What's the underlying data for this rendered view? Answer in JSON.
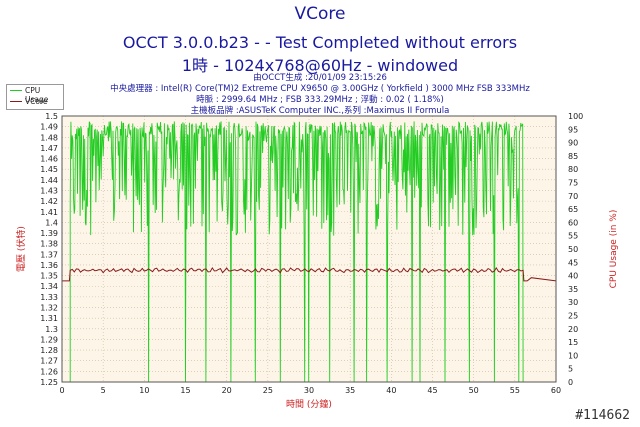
{
  "header": {
    "title": "VCore",
    "subtitle": "OCCT 3.0.0.b23 -  - Test Completed without errors",
    "subtitle2": "1時 - 1024x768@60Hz - windowed"
  },
  "info": {
    "line1": "由OCCT生成 :20/01/09 23:15:26",
    "line2": "中央處理器 : Intel(R) Core(TM)2 Extreme CPU X9650 @ 3.00GHz ( Yorkfield ) 3000 MHz FSB 333MHz",
    "line3": "時脈 : 2999.64 MHz ; FSB 333.29MHz ; 浮動 : 0.02 ( 1.18%)",
    "line4": "主機板品牌 :ASUSTeK Computer INC.,系列 :Maximus II Formula"
  },
  "watermark": "#114662",
  "chart_data": {
    "type": "line",
    "title": "VCore",
    "xlabel": "時間 (分鐘)",
    "ylabel": "電壓 (伏特)",
    "y2label": "CPU Usage (in %)",
    "xlim": [
      0,
      60
    ],
    "ylim": [
      1.25,
      1.5
    ],
    "y2lim": [
      0,
      100
    ],
    "xticks": [
      0,
      5,
      10,
      15,
      20,
      25,
      30,
      35,
      40,
      45,
      50,
      55,
      60
    ],
    "yticks": [
      1.25,
      1.26,
      1.27,
      1.28,
      1.29,
      1.3,
      1.31,
      1.32,
      1.33,
      1.34,
      1.35,
      1.36,
      1.37,
      1.38,
      1.39,
      1.4,
      1.41,
      1.42,
      1.43,
      1.44,
      1.45,
      1.46,
      1.47,
      1.48,
      1.49,
      1.5
    ],
    "y2ticks": [
      0,
      5,
      10,
      15,
      20,
      25,
      30,
      35,
      40,
      45,
      50,
      55,
      60,
      65,
      70,
      75,
      80,
      85,
      90,
      95,
      100
    ],
    "grid": true,
    "legend": "top-left",
    "colors": {
      "cpu": "#22cc22",
      "vcore": "#8b1a1a",
      "plot_bg": "#fdf6e8",
      "grid": "#c8b8a0"
    },
    "series": [
      {
        "name": "CPU Usage",
        "axis": "right",
        "idle_value": 0,
        "active_range": [
          1,
          56
        ],
        "typical_range": [
          55,
          98
        ],
        "drops_to_zero_at": [
          10.5,
          15.0,
          17.5,
          20.5,
          23.5,
          26.5,
          29.5,
          30.0,
          32.5,
          35.5,
          37.0,
          39.5,
          42.5,
          43.5,
          46.5,
          49.5,
          52.5,
          55.5
        ]
      },
      {
        "name": "VCore",
        "axis": "left",
        "x": [
          0,
          0.9,
          1.0,
          56.0,
          56.1,
          56.5,
          57.0,
          60
        ],
        "y": [
          1.345,
          1.345,
          1.355,
          1.355,
          1.345,
          1.345,
          1.348,
          1.345
        ]
      }
    ]
  }
}
